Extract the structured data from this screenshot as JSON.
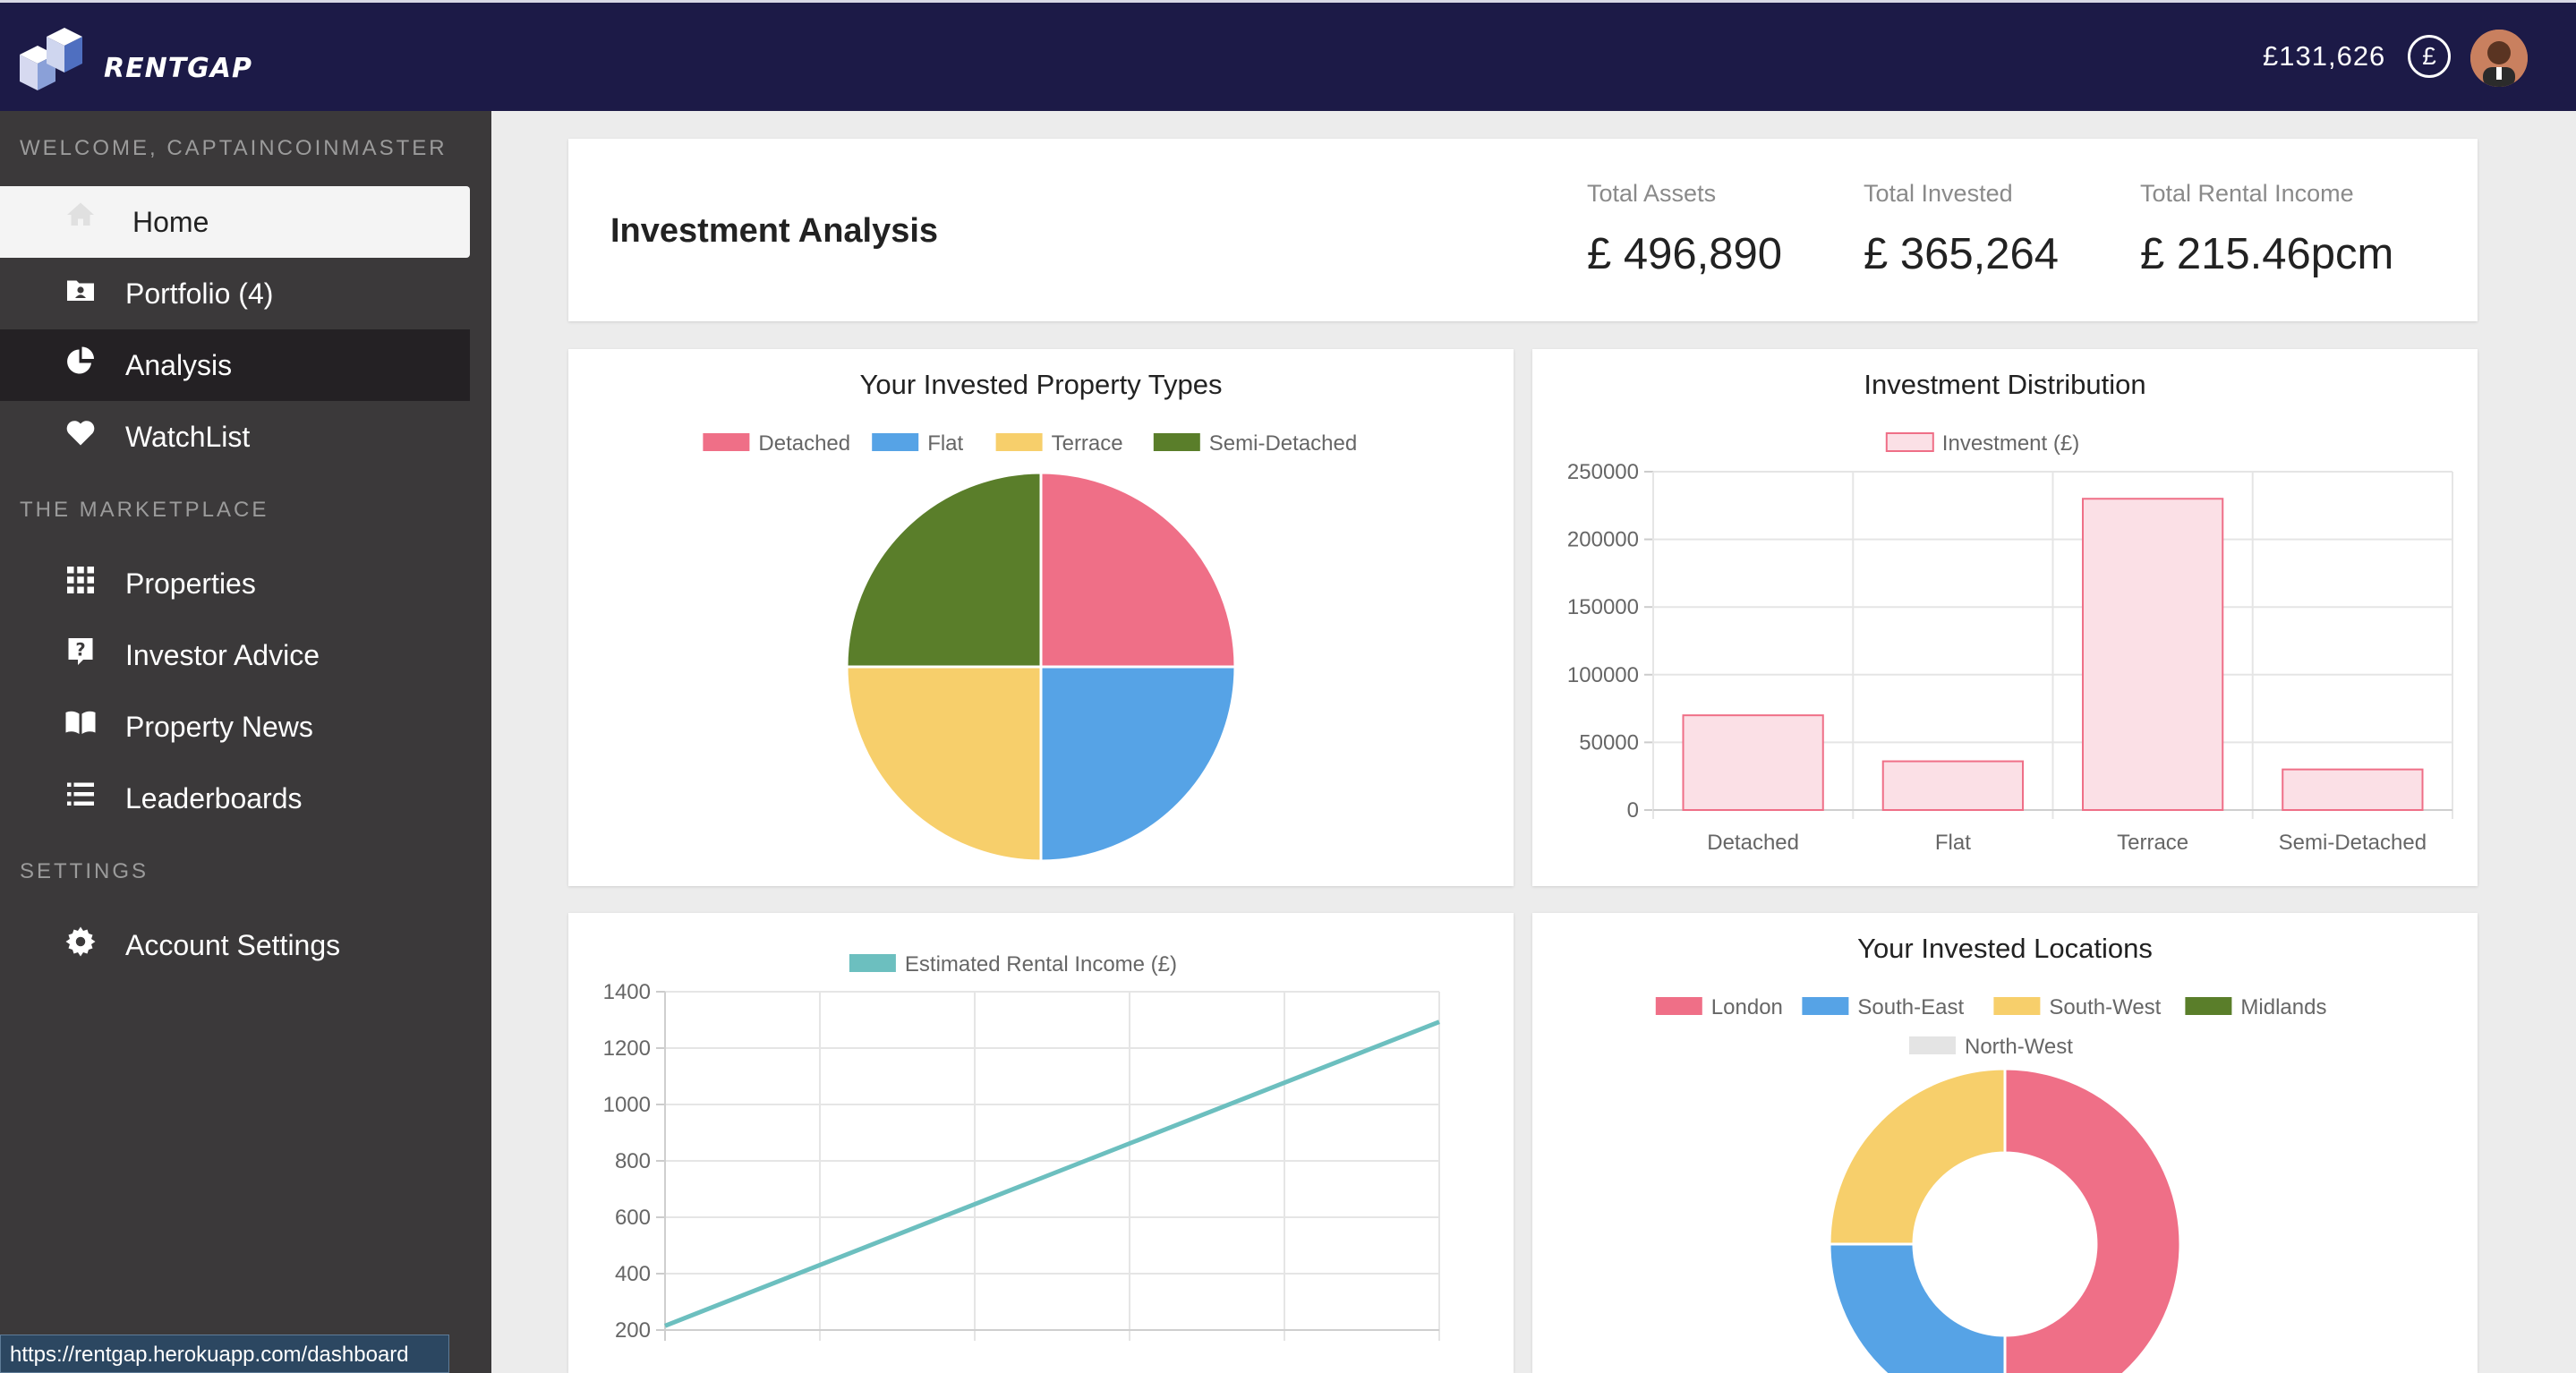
{
  "topbar": {
    "brand": "RENTGAP",
    "balance": "£131,626",
    "currency_icon": "pound-icon"
  },
  "sidebar": {
    "welcome": "WELCOME, CAPTAINCOINMASTER",
    "items": [
      {
        "label": "Home",
        "icon": "home-icon"
      },
      {
        "label": "Portfolio (4)",
        "icon": "portfolio-folder-icon"
      },
      {
        "label": "Analysis",
        "icon": "pie-chart-icon"
      },
      {
        "label": "WatchList",
        "icon": "heart-icon"
      }
    ],
    "marketplace_title": "THE MARKETPLACE",
    "marketplace_items": [
      {
        "label": "Properties",
        "icon": "grid-icon"
      },
      {
        "label": "Investor Advice",
        "icon": "question-icon"
      },
      {
        "label": "Property News",
        "icon": "book-icon"
      },
      {
        "label": "Leaderboards",
        "icon": "list-icon"
      }
    ],
    "settings_title": "SETTINGS",
    "settings_items": [
      {
        "label": "Account Settings",
        "icon": "gear-icon"
      }
    ]
  },
  "status_bar": {
    "url": "https://rentgap.herokuapp.com/dashboard"
  },
  "header": {
    "title": "Investment Analysis",
    "stats": [
      {
        "label": "Total Assets",
        "value": "£ 496,890"
      },
      {
        "label": "Total Invested",
        "value": "£ 365,264"
      },
      {
        "label": "Total Rental Income",
        "value": "£ 215.46pcm"
      }
    ]
  },
  "colors": {
    "red": "#ef6f87",
    "blue": "#56a3e6",
    "yellow": "#f7cf6b",
    "green": "#5a7e2a",
    "grey": "#e4e4e4",
    "teal": "#6cbfbf",
    "bar_fill": "#fbe0e6",
    "bar_border": "#ef6f87",
    "topbar": "#1c1a47",
    "sidebar": "#3b393a"
  },
  "chart_data": [
    {
      "type": "pie",
      "title": "Your Invested Property Types",
      "categories": [
        "Detached",
        "Flat",
        "Terrace",
        "Semi-Detached"
      ],
      "values": [
        1,
        1,
        1,
        1
      ]
    },
    {
      "type": "bar",
      "title": "Investment Distribution",
      "categories": [
        "Detached",
        "Flat",
        "Terrace",
        "Semi-Detached"
      ],
      "series": [
        {
          "name": "Investment (£)",
          "values": [
            70000,
            36000,
            230000,
            30000
          ]
        }
      ],
      "ylim": [
        0,
        250000
      ],
      "yticks": [
        "250000",
        "200000",
        "150000",
        "100000",
        "50000",
        "0"
      ]
    },
    {
      "type": "line",
      "title": "",
      "series": [
        {
          "name": "Estimated Rental Income (£)",
          "values": [
            215,
            1293
          ]
        }
      ],
      "ylim": [
        200,
        1400
      ],
      "yticks": [
        "1400",
        "1200",
        "1000",
        "800",
        "600",
        "400",
        "200"
      ]
    },
    {
      "type": "pie",
      "title": "Your Invested Locations",
      "categories": [
        "London",
        "South-East",
        "South-West",
        "Midlands",
        "North-West"
      ],
      "values": [
        2,
        1,
        1,
        0,
        0
      ]
    }
  ]
}
